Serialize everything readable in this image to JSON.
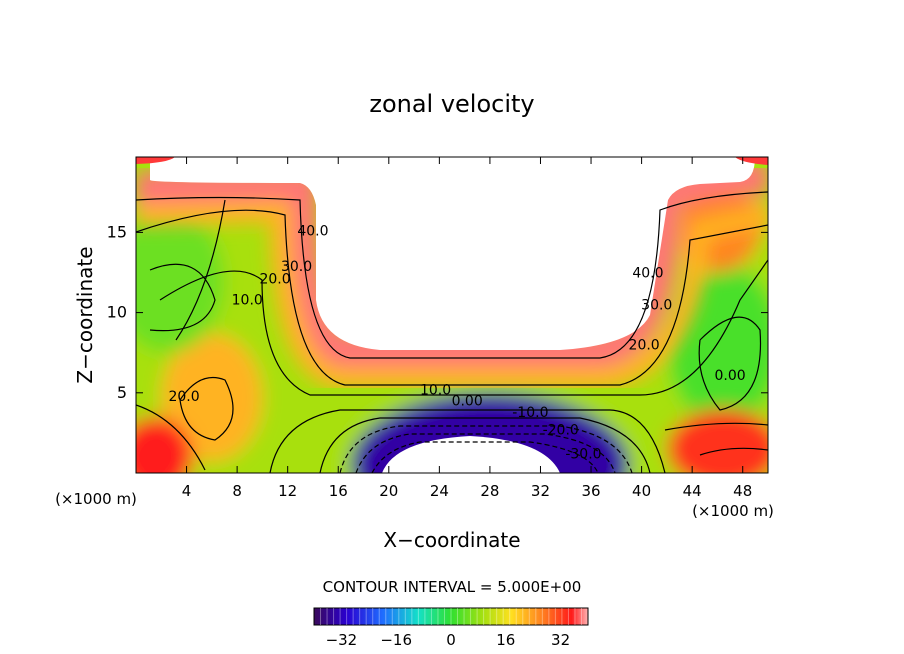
{
  "chart_data": {
    "type": "heatmap",
    "title": "zonal velocity",
    "xlabel": "X−coordinate",
    "ylabel": "Z−coordinate",
    "x_unit": "(×1000 m)",
    "y_unit": "(×1000 m)",
    "xlim": [
      0,
      50
    ],
    "ylim": [
      0,
      19.7
    ],
    "x_ticks": [
      4,
      8,
      12,
      16,
      20,
      24,
      28,
      32,
      36,
      40,
      44,
      48
    ],
    "x_tick_labels": [
      "4",
      "8",
      "12",
      "16",
      "20",
      "24",
      "28",
      "32",
      "36",
      "40",
      "44",
      "48"
    ],
    "y_ticks": [
      5,
      10,
      15
    ],
    "y_tick_labels": [
      "5",
      "10",
      "15"
    ],
    "contour_interval_label": "CONTOUR INTERVAL = 5.000E+00",
    "contour_interval": 5.0,
    "colorbar": {
      "range": [
        -40,
        40
      ],
      "ticks": [
        -32,
        -16,
        0,
        16,
        32
      ],
      "tick_labels": [
        "−32",
        "−16",
        "0",
        "16",
        "32"
      ]
    },
    "contour_labels": [
      {
        "text": "40.0",
        "x": 14.0,
        "z": 14.8
      },
      {
        "text": "30.0",
        "x": 12.7,
        "z": 12.6
      },
      {
        "text": "20.0",
        "x": 11.0,
        "z": 11.8
      },
      {
        "text": "10.0",
        "x": 8.8,
        "z": 10.5
      },
      {
        "text": "20.0",
        "x": 3.8,
        "z": 4.5
      },
      {
        "text": "40.0",
        "x": 40.5,
        "z": 12.2
      },
      {
        "text": "30.0",
        "x": 41.2,
        "z": 10.2
      },
      {
        "text": "20.0",
        "x": 40.2,
        "z": 7.7
      },
      {
        "text": "10.0",
        "x": 23.7,
        "z": 4.9
      },
      {
        "text": "0.00",
        "x": 26.2,
        "z": 4.2
      },
      {
        "text": "0.00",
        "x": 47.0,
        "z": 5.8
      },
      {
        "text": "-10.0",
        "x": 31.2,
        "z": 3.5
      },
      {
        "text": "-20.0",
        "x": 33.6,
        "z": 2.4
      },
      {
        "text": "-30.0",
        "x": 35.4,
        "z": 0.9
      }
    ],
    "field_features": [
      {
        "kind": "fill",
        "x": [
          0,
          50
        ],
        "z": [
          0,
          19.7
        ],
        "value": 10
      },
      {
        "kind": "blob",
        "x": 6.0,
        "z": 4.7,
        "rx": 4.0,
        "rz": 4.0,
        "value": 22
      },
      {
        "kind": "blob",
        "x": 2.5,
        "z": 12.0,
        "rx": 4.5,
        "rz": 4.5,
        "value": 5
      },
      {
        "kind": "blob",
        "x": 46.5,
        "z": 8.0,
        "rx": 4.5,
        "rz": 5.0,
        "value": 2
      },
      {
        "kind": "blob",
        "x": 28.0,
        "z": 0.5,
        "rx": 11.0,
        "rz": 4.5,
        "value": -35
      },
      {
        "kind": "blob",
        "x": 1.5,
        "z": 1.0,
        "rx": 3.0,
        "rz": 2.5,
        "value": 35
      },
      {
        "kind": "blob",
        "x": 46.5,
        "z": 1.5,
        "rx": 4.5,
        "rz": 2.5,
        "value": 33
      },
      {
        "kind": "blob",
        "x": 46.0,
        "z": 15.5,
        "rx": 3.5,
        "rz": 3.0,
        "value": 26
      }
    ]
  }
}
